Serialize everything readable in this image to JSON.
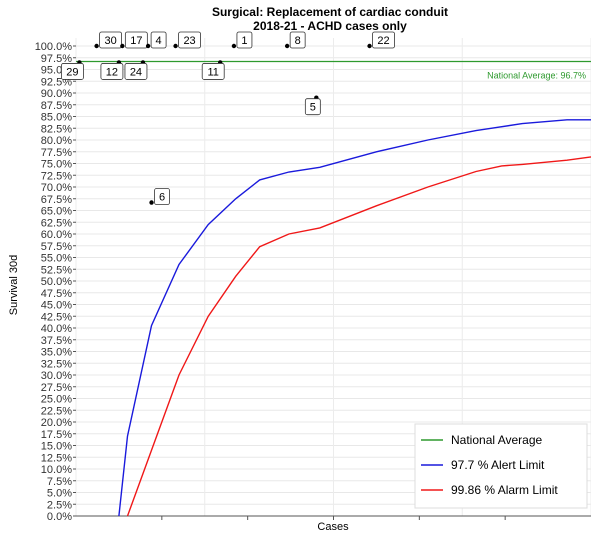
{
  "chart_data": {
    "type": "line",
    "title": "Surgical: Replacement of cardiac conduit",
    "subtitle": "2018-21 - ACHD cases only",
    "xlabel": "Cases",
    "ylabel": "Survival 30d",
    "ylim": [
      0,
      100
    ],
    "yticks": [
      "0.0%",
      "2.5%",
      "5.0%",
      "7.5%",
      "10.0%",
      "12.5%",
      "15.0%",
      "17.5%",
      "20.0%",
      "22.5%",
      "25.0%",
      "27.5%",
      "30.0%",
      "32.5%",
      "35.0%",
      "37.5%",
      "40.0%",
      "42.5%",
      "45.0%",
      "47.5%",
      "50.0%",
      "52.5%",
      "55.0%",
      "57.5%",
      "60.0%",
      "62.5%",
      "65.0%",
      "67.5%",
      "70.0%",
      "72.5%",
      "75.0%",
      "77.5%",
      "80.0%",
      "82.5%",
      "85.0%",
      "87.5%",
      "90.0%",
      "92.5%",
      "95.0%",
      "97.5%",
      "100.0%"
    ],
    "xlim": [
      0,
      30
    ],
    "grid": true,
    "legend_position": "bottom-right",
    "national_average": {
      "value": 96.7,
      "label": "National Average: 96.7%",
      "color": "#2e9a2e"
    },
    "series": [
      {
        "name": "97.7 %  Alert Limit",
        "color": "#1a1adc",
        "points": [
          [
            2.5,
            0
          ],
          [
            3.0,
            17
          ],
          [
            4.4,
            40.5
          ],
          [
            6.0,
            53.5
          ],
          [
            7.7,
            62
          ],
          [
            9.3,
            67.5
          ],
          [
            10.7,
            71.5
          ],
          [
            12.4,
            73.2
          ],
          [
            14.2,
            74.2
          ],
          [
            17.5,
            77.5
          ],
          [
            20.5,
            80
          ],
          [
            23.3,
            82
          ],
          [
            26.0,
            83.5
          ],
          [
            28.6,
            84.3
          ],
          [
            30,
            84.3
          ]
        ]
      },
      {
        "name": "99.86 %  Alarm Limit",
        "color": "#f01818",
        "points": [
          [
            3.0,
            0
          ],
          [
            4.4,
            14
          ],
          [
            6.0,
            30
          ],
          [
            7.7,
            42.5
          ],
          [
            9.3,
            51
          ],
          [
            10.7,
            57.3
          ],
          [
            12.4,
            60
          ],
          [
            14.2,
            61.3
          ],
          [
            17.5,
            66
          ],
          [
            20.5,
            70
          ],
          [
            23.3,
            73.3
          ],
          [
            24.8,
            74.5
          ],
          [
            26.0,
            74.8
          ],
          [
            28.6,
            75.7
          ],
          [
            30,
            76.4
          ]
        ]
      }
    ],
    "hospital_points": [
      {
        "label": "30",
        "x": 1.2,
        "y": 100,
        "label_pos": "above"
      },
      {
        "label": "17",
        "x": 2.7,
        "y": 100,
        "label_pos": "above"
      },
      {
        "label": "4",
        "x": 4.2,
        "y": 100,
        "label_pos": "above"
      },
      {
        "label": "23",
        "x": 5.8,
        "y": 100,
        "label_pos": "above"
      },
      {
        "label": "1",
        "x": 9.2,
        "y": 100,
        "label_pos": "above"
      },
      {
        "label": "8",
        "x": 12.3,
        "y": 100,
        "label_pos": "above"
      },
      {
        "label": "22",
        "x": 17.1,
        "y": 100,
        "label_pos": "above"
      },
      {
        "label": "29",
        "x": 0.2,
        "y": 96.5,
        "label_pos": "below"
      },
      {
        "label": "12",
        "x": 2.5,
        "y": 96.5,
        "label_pos": "below"
      },
      {
        "label": "24",
        "x": 3.9,
        "y": 96.5,
        "label_pos": "below"
      },
      {
        "label": "11",
        "x": 8.4,
        "y": 96.5,
        "label_pos": "below"
      },
      {
        "label": "5",
        "x": 14.0,
        "y": 89,
        "label_pos": "below"
      },
      {
        "label": "6",
        "x": 4.4,
        "y": 66.7,
        "label_pos": "above"
      }
    ]
  }
}
